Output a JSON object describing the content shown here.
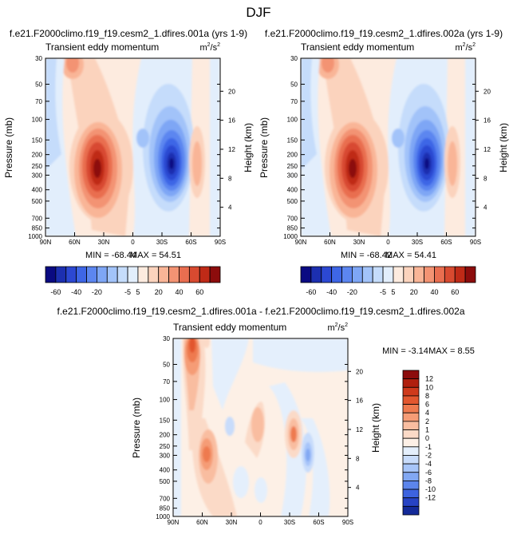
{
  "figure": {
    "title": "DJF"
  },
  "chart_data": [
    {
      "type": "heatmap",
      "title": "f.e21.F2000climo.f19_f19.cesm2_1.dfires.001a (yrs 1-9)",
      "subtitle_left": "Transient eddy momentum",
      "units": "m²/s²",
      "ylabel": "Pressure (mb)",
      "ylabel_right": "Height (km)",
      "x_ticks": [
        "90N",
        "60N",
        "30N",
        "0",
        "30S",
        "60S",
        "90S"
      ],
      "y_ticks": [
        "30",
        "50",
        "70",
        "100",
        "150",
        "200",
        "250",
        "300",
        "400",
        "500",
        "700",
        "850",
        "1000"
      ],
      "y_ticks_right": [
        "20",
        "16",
        "12",
        "8",
        "4"
      ],
      "ylim": [
        1000,
        30
      ],
      "y_scale": "log",
      "min_label": "MIN = -68.44",
      "max_label": "MAX = 54.51",
      "min": -68.44,
      "max": 54.51,
      "features": [
        {
          "lat": 30,
          "p": 260,
          "value": 54.51
        },
        {
          "lat": -42,
          "p": 220,
          "value": -68.44
        },
        {
          "lat": 68,
          "p": 40,
          "value": 14
        }
      ]
    },
    {
      "type": "heatmap",
      "title": "f.e21.F2000climo.f19_f19.cesm2_1.dfires.002a (yrs 1-9)",
      "subtitle_left": "Transient eddy momentum",
      "units": "m²/s²",
      "ylabel": "Pressure (mb)",
      "ylabel_right": "Height (km)",
      "x_ticks": [
        "90N",
        "60N",
        "30N",
        "0",
        "30S",
        "60S",
        "90S"
      ],
      "y_ticks": [
        "30",
        "50",
        "70",
        "100",
        "150",
        "200",
        "250",
        "300",
        "400",
        "500",
        "700",
        "850",
        "1000"
      ],
      "y_ticks_right": [
        "20",
        "16",
        "12",
        "8",
        "4"
      ],
      "ylim": [
        1000,
        30
      ],
      "y_scale": "log",
      "min_label": "MIN = -68.42",
      "max_label": "MAX = 54.41",
      "min": -68.42,
      "max": 54.41,
      "features": [
        {
          "lat": 30,
          "p": 260,
          "value": 54.41
        },
        {
          "lat": -42,
          "p": 220,
          "value": -68.42
        },
        {
          "lat": 68,
          "p": 40,
          "value": 14
        }
      ]
    },
    {
      "type": "heatmap",
      "title": "f.e21.F2000climo.f19_f19.cesm2_1.dfires.001a - f.e21.F2000climo.f19_f19.cesm2_1.dfires.002a",
      "subtitle_left": "Transient eddy momentum",
      "units": "m²/s²",
      "ylabel": "Pressure (mb)",
      "ylabel_right": "Height (km)",
      "x_ticks": [
        "90N",
        "60N",
        "30N",
        "0",
        "30S",
        "60S",
        "90S"
      ],
      "y_ticks": [
        "30",
        "50",
        "70",
        "100",
        "150",
        "200",
        "250",
        "300",
        "400",
        "500",
        "700",
        "850",
        "1000"
      ],
      "y_ticks_right": [
        "20",
        "16",
        "12",
        "8",
        "4"
      ],
      "ylim": [
        1000,
        30
      ],
      "y_scale": "log",
      "min_label": "MIN = -3.14",
      "max_label": "MAX = 8.55",
      "min": -3.14,
      "max": 8.55,
      "features": [
        {
          "lat": 70,
          "p": 35,
          "value": 8.55
        },
        {
          "lat": 52,
          "p": 300,
          "value": 5
        },
        {
          "lat": 6,
          "p": 150,
          "value": 3
        },
        {
          "lat": -35,
          "p": 200,
          "value": 4
        },
        {
          "lat": -47,
          "p": 300,
          "value": -3.14
        }
      ]
    }
  ],
  "colorbars": {
    "full": {
      "orientation": "horizontal",
      "labels": [
        "-60",
        "-40",
        "-20",
        "-5",
        "5",
        "20",
        "40",
        "60"
      ],
      "colors": [
        "#0a0a82",
        "#1c2fb0",
        "#2c48d2",
        "#3e66e6",
        "#5c86f0",
        "#7ea6f5",
        "#a2c3f9",
        "#c5dcfb",
        "#e2eefc",
        "#fdebdf",
        "#fbd3bd",
        "#f9b597",
        "#f39373",
        "#e96e50",
        "#d84a30",
        "#bf2a17",
        "#8c0c0c"
      ]
    },
    "diff": {
      "orientation": "vertical",
      "labels": [
        "12",
        "10",
        "8",
        "6",
        "4",
        "2",
        "1",
        "0",
        "-1",
        "-2",
        "-4",
        "-6",
        "-8",
        "-10",
        "-12"
      ],
      "colors": [
        "#8c0c0c",
        "#b0200f",
        "#cf3a1c",
        "#e2572f",
        "#ee7a4f",
        "#f59c76",
        "#f9bda0",
        "#fbdac7",
        "#fdf0e6",
        "#e4effc",
        "#c8dcfb",
        "#a7c5f9",
        "#82a8f3",
        "#5c85ec",
        "#3d63df",
        "#2743c4",
        "#142a99"
      ]
    }
  }
}
